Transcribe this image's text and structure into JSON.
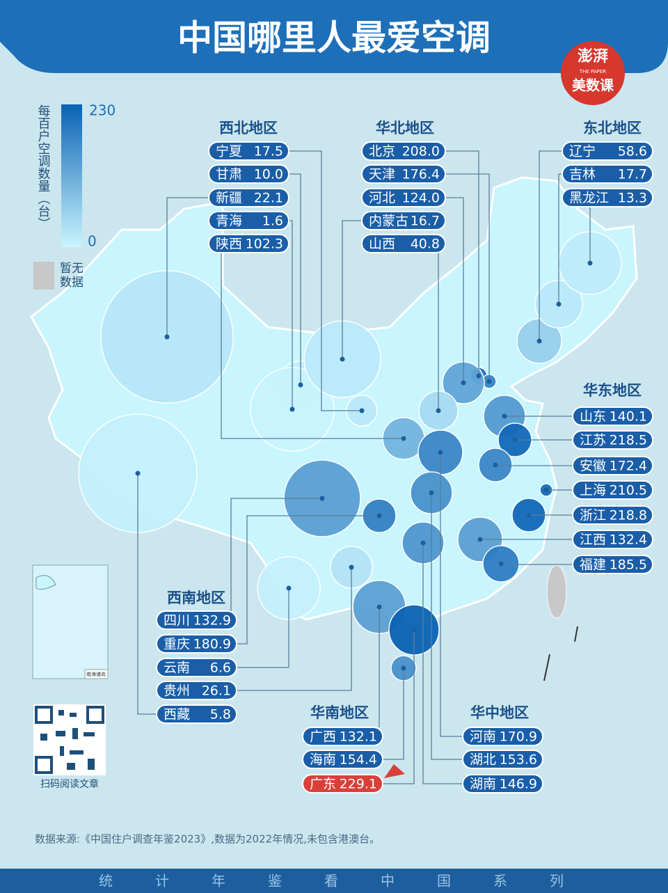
{
  "title": "中国哪里人最爱空调",
  "logo": {
    "top": "澎湃",
    "middle": "THE PAPER",
    "bottom": "美数课"
  },
  "legend": {
    "label": "每百户空调数量（台）",
    "max": 230,
    "min": 0,
    "no_data": "暂无数据"
  },
  "regions": [
    {
      "name": "西北地区",
      "provinces": [
        {
          "name": "宁夏",
          "value": 17.5
        },
        {
          "name": "甘肃",
          "value": 10.0,
          "value_label": "10.0"
        },
        {
          "name": "新疆",
          "value": 22.1
        },
        {
          "name": "青海",
          "value": 1.6
        },
        {
          "name": "陕西",
          "value": 102.3
        }
      ]
    },
    {
      "name": "华北地区",
      "provinces": [
        {
          "name": "北京",
          "value": 208.0,
          "value_label": "208.0"
        },
        {
          "name": "天津",
          "value": 176.4
        },
        {
          "name": "河北",
          "value": 124.0,
          "value_label": "124.0"
        },
        {
          "name": "内蒙古",
          "value": 16.7
        },
        {
          "name": "山西",
          "value": 40.8
        }
      ]
    },
    {
      "name": "东北地区",
      "provinces": [
        {
          "name": "辽宁",
          "value": 58.6
        },
        {
          "name": "吉林",
          "value": 17.7
        },
        {
          "name": "黑龙江",
          "value": 13.3
        }
      ]
    },
    {
      "name": "华东地区",
      "provinces": [
        {
          "name": "山东",
          "value": 140.1
        },
        {
          "name": "江苏",
          "value": 218.5
        },
        {
          "name": "安徽",
          "value": 172.4
        },
        {
          "name": "上海",
          "value": 210.5
        },
        {
          "name": "浙江",
          "value": 218.8
        },
        {
          "name": "江西",
          "value": 132.4
        },
        {
          "name": "福建",
          "value": 185.5
        }
      ]
    },
    {
      "name": "西南地区",
      "provinces": [
        {
          "name": "四川",
          "value": 132.9
        },
        {
          "name": "重庆",
          "value": 180.9
        },
        {
          "name": "云南",
          "value": 6.6
        },
        {
          "name": "贵州",
          "value": 26.1
        },
        {
          "name": "西藏",
          "value": 5.8
        }
      ]
    },
    {
      "name": "华南地区",
      "provinces": [
        {
          "name": "广西",
          "value": 132.1
        },
        {
          "name": "海南",
          "value": 154.4
        },
        {
          "name": "广东",
          "value": 229.1
        }
      ]
    },
    {
      "name": "华中地区",
      "provinces": [
        {
          "name": "河南",
          "value": 170.9
        },
        {
          "name": "湖北",
          "value": 153.6
        },
        {
          "name": "湖南",
          "value": 146.9
        }
      ]
    }
  ],
  "inset_label": "南海诸岛",
  "qr_label": "扫码阅读文章",
  "source": "数据来源:《中国住户调查年鉴2023》,数据为2022年情况,未包含港澳台。",
  "footer": "统计年鉴看中国系列"
}
